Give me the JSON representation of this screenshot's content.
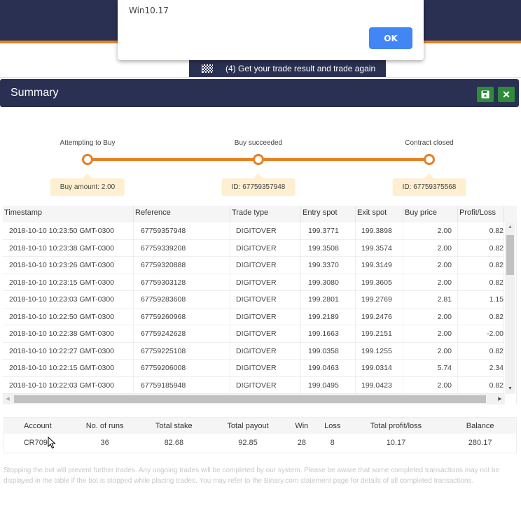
{
  "alert": {
    "message": "Win10.17",
    "ok_label": "OK"
  },
  "tour": {
    "step_label": "(4) Get your trade result and trade again",
    "icon": "checkered-flag-icon"
  },
  "summary": {
    "title": "Summary",
    "save_icon": "floppy-disk-icon",
    "close_label": "✕"
  },
  "timeline": {
    "steps": [
      {
        "label": "Attempting to Buy",
        "info": "Buy amount: 2.00"
      },
      {
        "label": "Buy succeeded",
        "info": "ID: 67759357948"
      },
      {
        "label": "Contract closed",
        "info": "ID: 67759375568"
      }
    ]
  },
  "trades": {
    "columns": [
      "Timestamp",
      "Reference",
      "Trade type",
      "Entry spot",
      "Exit spot",
      "Buy price",
      "Profit/Loss"
    ],
    "rows": [
      {
        "timestamp": "2018-10-10 10:23:50 GMT-0300",
        "reference": "67759357948",
        "type": "DIGITOVER",
        "entry": "199.3771",
        "exit": "199.3898",
        "buy": "2.00",
        "pl": "0.82"
      },
      {
        "timestamp": "2018-10-10 10:23:38 GMT-0300",
        "reference": "67759339208",
        "type": "DIGITOVER",
        "entry": "199.3508",
        "exit": "199.3574",
        "buy": "2.00",
        "pl": "0.82"
      },
      {
        "timestamp": "2018-10-10 10:23:26 GMT-0300",
        "reference": "67759320888",
        "type": "DIGITOVER",
        "entry": "199.3370",
        "exit": "199.3149",
        "buy": "2.00",
        "pl": "0.82"
      },
      {
        "timestamp": "2018-10-10 10:23:15 GMT-0300",
        "reference": "67759303128",
        "type": "DIGITOVER",
        "entry": "199.3080",
        "exit": "199.3605",
        "buy": "2.00",
        "pl": "0.82"
      },
      {
        "timestamp": "2018-10-10 10:23:03 GMT-0300",
        "reference": "67759283608",
        "type": "DIGITOVER",
        "entry": "199.2801",
        "exit": "199.2769",
        "buy": "2.81",
        "pl": "1.15"
      },
      {
        "timestamp": "2018-10-10 10:22:50 GMT-0300",
        "reference": "67759260968",
        "type": "DIGITOVER",
        "entry": "199.2189",
        "exit": "199.2476",
        "buy": "2.00",
        "pl": "0.82"
      },
      {
        "timestamp": "2018-10-10 10:22:38 GMT-0300",
        "reference": "67759242628",
        "type": "DIGITOVER",
        "entry": "199.1663",
        "exit": "199.2151",
        "buy": "2.00",
        "pl": "-2.00"
      },
      {
        "timestamp": "2018-10-10 10:22:27 GMT-0300",
        "reference": "67759225108",
        "type": "DIGITOVER",
        "entry": "199.0358",
        "exit": "199.1255",
        "buy": "2.00",
        "pl": "0.82"
      },
      {
        "timestamp": "2018-10-10 10:22:15 GMT-0300",
        "reference": "67759206008",
        "type": "DIGITOVER",
        "entry": "199.0463",
        "exit": "199.0314",
        "buy": "5.74",
        "pl": "2.34"
      },
      {
        "timestamp": "2018-10-10 10:22:03 GMT-0300",
        "reference": "67759185948",
        "type": "DIGITOVER",
        "entry": "199.0495",
        "exit": "199.0423",
        "buy": "2.00",
        "pl": "0.82"
      }
    ]
  },
  "stats": {
    "columns": [
      "Account",
      "No. of runs",
      "Total stake",
      "Total payout",
      "Win",
      "Loss",
      "Total profit/loss",
      "Balance"
    ],
    "values": {
      "account": "CR7090",
      "runs": "36",
      "stake": "82.68",
      "payout": "92.85",
      "win": "28",
      "loss": "8",
      "profit_loss": "10.17",
      "balance": "280.17"
    }
  },
  "disclaimer": "Stopping the bot will prevent further trades. Any ongoing trades will be completed by our system. Please be aware that some completed transactions may not be displayed in the table if the bot is stopped while placing trades. You may refer to the Binary.com statement page for details of all completed transactions.",
  "colors": {
    "header_bg": "#2a3052",
    "accent_orange": "#e98024",
    "ok_button": "#4285f4",
    "action_green": "#2e8b3a",
    "profit_green": "#2e9e3e",
    "loss_red": "#e31c1c",
    "bubble_bg": "#fdefd0"
  }
}
